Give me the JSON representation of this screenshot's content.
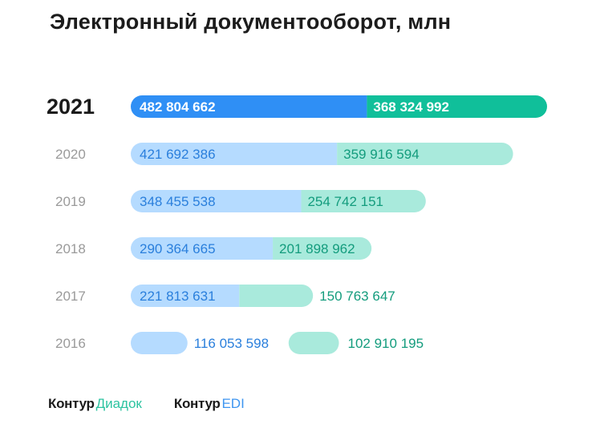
{
  "chart_data": {
    "type": "bar",
    "orientation": "horizontal",
    "stacked": true,
    "title": "Электронный документооборот, млн",
    "categories": [
      "2021",
      "2020",
      "2019",
      "2018",
      "2017",
      "2016"
    ],
    "highlighted_category": "2021",
    "series": [
      {
        "name": "Контур Диадок",
        "values": [
          482804662,
          421692386,
          348455538,
          290364665,
          221813631,
          116053598
        ],
        "labels": [
          "482 804 662",
          "421 692 386",
          "348 455 538",
          "290 364 665",
          "221 813 631",
          "116 053 598"
        ],
        "color": "#2f8ff5",
        "light_color": "#b5dbff",
        "text_color": "#2a7fdc"
      },
      {
        "name": "Контур EDI",
        "values": [
          368324992,
          359916594,
          254742151,
          201898962,
          150763647,
          102910195
        ],
        "labels": [
          "368 324 992",
          "359 916 594",
          "254 742 151",
          "201 898 962",
          "150 763 647",
          "102 910 195"
        ],
        "color": "#10bf9a",
        "light_color": "#a9eadc",
        "text_color": "#139c7d"
      }
    ],
    "grid": false
  },
  "legend": {
    "items": [
      {
        "brand": "Контур",
        "product": "Диадок",
        "color": "#2cc3a0"
      },
      {
        "brand": "Контур",
        "product": "EDI",
        "color": "#3d95f0"
      }
    ]
  }
}
